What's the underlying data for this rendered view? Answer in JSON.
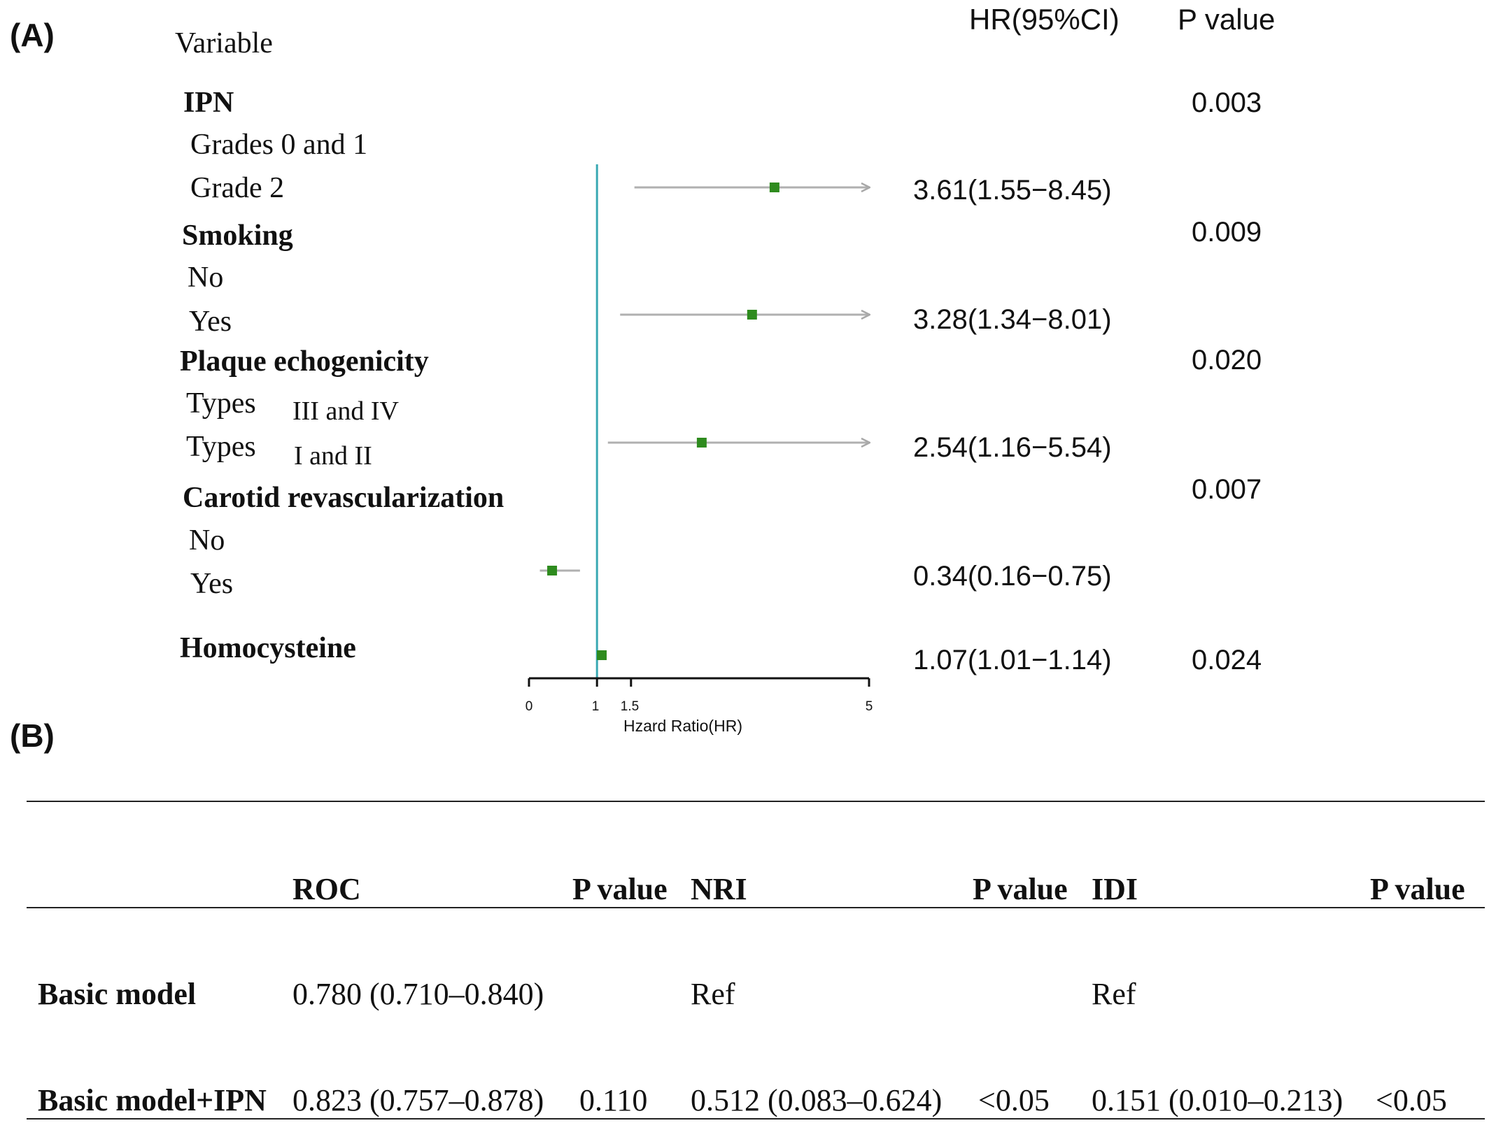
{
  "panel_a_label": "(A)",
  "panel_b_label": "(B)",
  "forest": {
    "headers": {
      "variable": "Variable",
      "hr": "HR(95%CI)",
      "p": "P value"
    },
    "groups": [
      {
        "name": "IPN",
        "p_value": "0.003",
        "reference": "Grades 0 and 1",
        "comparison": "Grade 2",
        "hr_text": "3.61(1.55−8.45)"
      },
      {
        "name": "Smoking",
        "p_value": "0.009",
        "reference": "No",
        "comparison": "Yes",
        "hr_text": "3.28(1.34−8.01)"
      },
      {
        "name": "Plaque echogenicity",
        "p_value": "0.020",
        "reference_prefix": "Types",
        "reference_suffix": "III and IV",
        "comparison_prefix": "Types",
        "comparison_suffix": "I and II",
        "hr_text": "2.54(1.16−5.54)"
      },
      {
        "name": "Carotid revascularization",
        "p_value": "0.007",
        "reference": "No",
        "comparison": "Yes",
        "hr_text": "0.34(0.16−0.75)"
      },
      {
        "name": "Homocysteine",
        "p_value": "0.024",
        "hr_text": "1.07(1.01−1.14)"
      }
    ],
    "axis": {
      "title": "Hzard Ratio(HR)",
      "ticks": [
        "0",
        "1",
        "1.5",
        "5"
      ]
    }
  },
  "chart_data": {
    "type": "forest",
    "x_axis": {
      "label": "Hzard Ratio(HR)",
      "range": [
        0,
        5
      ],
      "ticks": [
        0,
        1,
        1.5,
        5
      ],
      "reference_line": 1
    },
    "rows": [
      {
        "variable": "IPN",
        "level": "Grade 2",
        "hr": 3.61,
        "lower": 1.55,
        "upper": 8.45,
        "upper_truncated": true,
        "p": "0.003"
      },
      {
        "variable": "Smoking",
        "level": "Yes",
        "hr": 3.28,
        "lower": 1.34,
        "upper": 8.01,
        "upper_truncated": true,
        "p": "0.009"
      },
      {
        "variable": "Plaque echogenicity",
        "level": "Types I and II",
        "hr": 2.54,
        "lower": 1.16,
        "upper": 5.54,
        "upper_truncated": true,
        "p": "0.020"
      },
      {
        "variable": "Carotid revascularization",
        "level": "Yes",
        "hr": 0.34,
        "lower": 0.16,
        "upper": 0.75,
        "upper_truncated": false,
        "p": "0.007"
      },
      {
        "variable": "Homocysteine",
        "level": "",
        "hr": 1.07,
        "lower": 1.01,
        "upper": 1.14,
        "upper_truncated": false,
        "p": "0.024"
      }
    ],
    "colors": {
      "marker": "#2e8b1e",
      "ci_line": "#b0b0b0",
      "ref_line": "#3aa9b3"
    }
  },
  "model_table": {
    "headers": [
      "",
      "ROC",
      "P value",
      "NRI",
      "P value",
      "IDI",
      "P value"
    ],
    "rows": [
      [
        "Basic model",
        "0.780 (0.710–0.840)",
        "",
        "Ref",
        "",
        "Ref",
        ""
      ],
      [
        "Basic model+IPN",
        "0.823 (0.757–0.878)",
        "0.110",
        "0.512 (0.083–0.624)",
        "<0.05",
        "0.151 (0.010–0.213)",
        "<0.05"
      ]
    ]
  }
}
